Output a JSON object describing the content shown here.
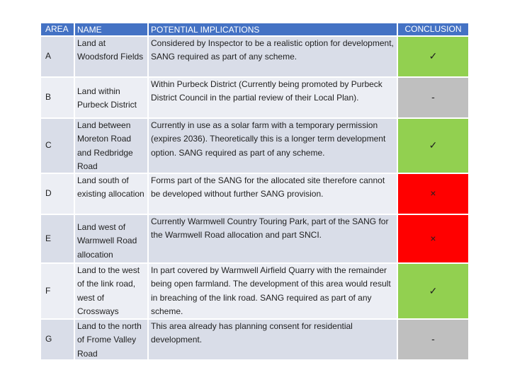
{
  "headers": {
    "area": "AREA",
    "name": "NAME",
    "implications": "POTENTIAL IMPLICATIONS",
    "conclusion": "CONCLUSION"
  },
  "rows": [
    {
      "area": "A",
      "name": "Land at Woodsford Fields",
      "implications": "Considered by Inspector to be a realistic option for development, SANG required as part of any scheme.",
      "conclusion": "✓",
      "status_color": "#92d050"
    },
    {
      "area": "B",
      "name": "Land within Purbeck District",
      "implications": "Within Purbeck District (Currently being promoted by Purbeck District Council in the partial review of their Local Plan).",
      "conclusion": "-",
      "status_color": "#bfbfbf"
    },
    {
      "area": "C",
      "name": "Land between Moreton Road and Redbridge Road",
      "implications": "Currently in use as a solar farm with a temporary permission (expires 2036). Theoretically this is a longer term development option. SANG required as part of any scheme.",
      "conclusion": "✓",
      "status_color": "#92d050"
    },
    {
      "area": "D",
      "name": "Land south of existing allocation",
      "implications": "Forms part of the SANG for the allocated site therefore cannot be developed without further SANG provision.",
      "conclusion": "×",
      "status_color": "#ff0000"
    },
    {
      "area": "E",
      "name": "Land west of Warmwell Road allocation",
      "implications": "Currently Warmwell Country Touring Park, part of the SANG for the Warmwell Road allocation and part SNCI.",
      "conclusion": "×",
      "status_color": "#ff0000"
    },
    {
      "area": "F",
      "name": "Land to the west of the link road, west of Crossways",
      "implications": "In part covered by Warmwell Airfield Quarry with the remainder being open farmland. The development of this area would result in breaching of the link road. SANG required as part of any scheme.",
      "conclusion": "✓",
      "status_color": "#92d050"
    },
    {
      "area": "G",
      "name": "Land to the north of Frome Valley Road",
      "implications": "This area already has planning consent for residential development.",
      "conclusion": "-",
      "status_color": "#bfbfbf"
    }
  ]
}
